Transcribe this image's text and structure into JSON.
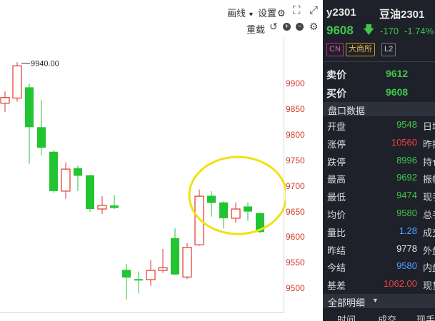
{
  "toolbar": {
    "draw_label": "画线",
    "settings_label": "设置",
    "reload_label": "重载"
  },
  "chart": {
    "annotation": "9940.00",
    "y_ticks": [
      "9900",
      "9850",
      "9800",
      "9750",
      "9700",
      "9650",
      "9600",
      "9550",
      "9500"
    ],
    "colors": {
      "up": "#e2362a",
      "down": "#22c531",
      "flat": "#22c531",
      "circle": "#f0e210"
    }
  },
  "chart_data": {
    "type": "candlestick",
    "ylim": [
      9450,
      9980
    ],
    "y_ticks": [
      9500,
      9550,
      9600,
      9650,
      9700,
      9750,
      9800,
      9850,
      9900
    ],
    "annotation": {
      "label": "9940.00",
      "value": 9940
    },
    "candles": [
      {
        "open": 9862,
        "close": 9873,
        "high": 9885,
        "low": 9845
      },
      {
        "open": 9872,
        "close": 9935,
        "high": 9942,
        "low": 9865
      },
      {
        "open": 9893,
        "close": 9815,
        "high": 9900,
        "low": 9744
      },
      {
        "open": 9815,
        "close": 9775,
        "high": 9868,
        "low": 9760
      },
      {
        "open": 9767,
        "close": 9690,
        "high": 9770,
        "low": 9687
      },
      {
        "open": 9690,
        "close": 9733,
        "high": 9746,
        "low": 9675
      },
      {
        "open": 9735,
        "close": 9720,
        "high": 9740,
        "low": 9690
      },
      {
        "open": 9721,
        "close": 9655,
        "high": 9722,
        "low": 9650
      },
      {
        "open": 9655,
        "close": 9662,
        "high": 9680,
        "low": 9645
      },
      {
        "open": 9662,
        "close": 9657,
        "high": 9682,
        "low": 9655
      },
      {
        "open": 9536,
        "close": 9521,
        "high": 9548,
        "low": 9478
      },
      {
        "open": 9518,
        "close": 9516,
        "high": 9533,
        "low": 9490
      },
      {
        "open": 9517,
        "close": 9535,
        "high": 9555,
        "low": 9505
      },
      {
        "open": 9535,
        "close": 9540,
        "high": 9577,
        "low": 9530
      },
      {
        "open": 9598,
        "close": 9527,
        "high": 9617,
        "low": 9526
      },
      {
        "open": 9522,
        "close": 9580,
        "high": 9588,
        "low": 9518
      },
      {
        "open": 9585,
        "close": 9680,
        "high": 9693,
        "low": 9583
      },
      {
        "open": 9681,
        "close": 9667,
        "high": 9690,
        "low": 9640
      },
      {
        "open": 9668,
        "close": 9637,
        "high": 9670,
        "low": 9617
      },
      {
        "open": 9637,
        "close": 9655,
        "high": 9668,
        "low": 9628
      },
      {
        "open": 9660,
        "close": 9650,
        "high": 9668,
        "low": 9632
      },
      {
        "open": 9647,
        "close": 9610,
        "high": 9648,
        "low": 9608
      }
    ]
  },
  "quote": {
    "symbol": "y2301",
    "name": "豆油2301",
    "price": "9608",
    "change": "-170",
    "change_pct": "-1.74%",
    "tags": [
      "CN",
      "大商所",
      "L2"
    ],
    "sell_label": "卖价",
    "sell_value": "9612",
    "buy_label": "买价",
    "buy_value": "9608",
    "section_title": "盘口数据",
    "rows": [
      {
        "label": "开盘",
        "value": "9548",
        "color": "#3ec84a",
        "suffix": "日增"
      },
      {
        "label": "涨停",
        "value": "10560",
        "color": "#ef4040",
        "suffix": "昨持"
      },
      {
        "label": "跌停",
        "value": "8996",
        "color": "#3ec84a",
        "suffix": "持仓"
      },
      {
        "label": "最高",
        "value": "9692",
        "color": "#3ec84a",
        "suffix": "振幅"
      },
      {
        "label": "最低",
        "value": "9474",
        "color": "#3ec84a",
        "suffix": "现手"
      },
      {
        "label": "均价",
        "value": "9580",
        "color": "#3ec84a",
        "suffix": "总手"
      },
      {
        "label": "量比",
        "value": "1.28",
        "color": "#4da3ff",
        "suffix": "成交"
      },
      {
        "label": "昨结",
        "value": "9778",
        "color": "#e6e6e6",
        "suffix": "外盘"
      },
      {
        "label": "今结",
        "value": "9580",
        "color": "#4da3ff",
        "suffix": "内盘"
      },
      {
        "label": "基差",
        "value": "1062.00",
        "color": "#ef4040",
        "suffix": "现货"
      }
    ],
    "detail_tab": "全部明细",
    "table_headers": [
      "时间",
      "成交",
      "现手"
    ]
  }
}
